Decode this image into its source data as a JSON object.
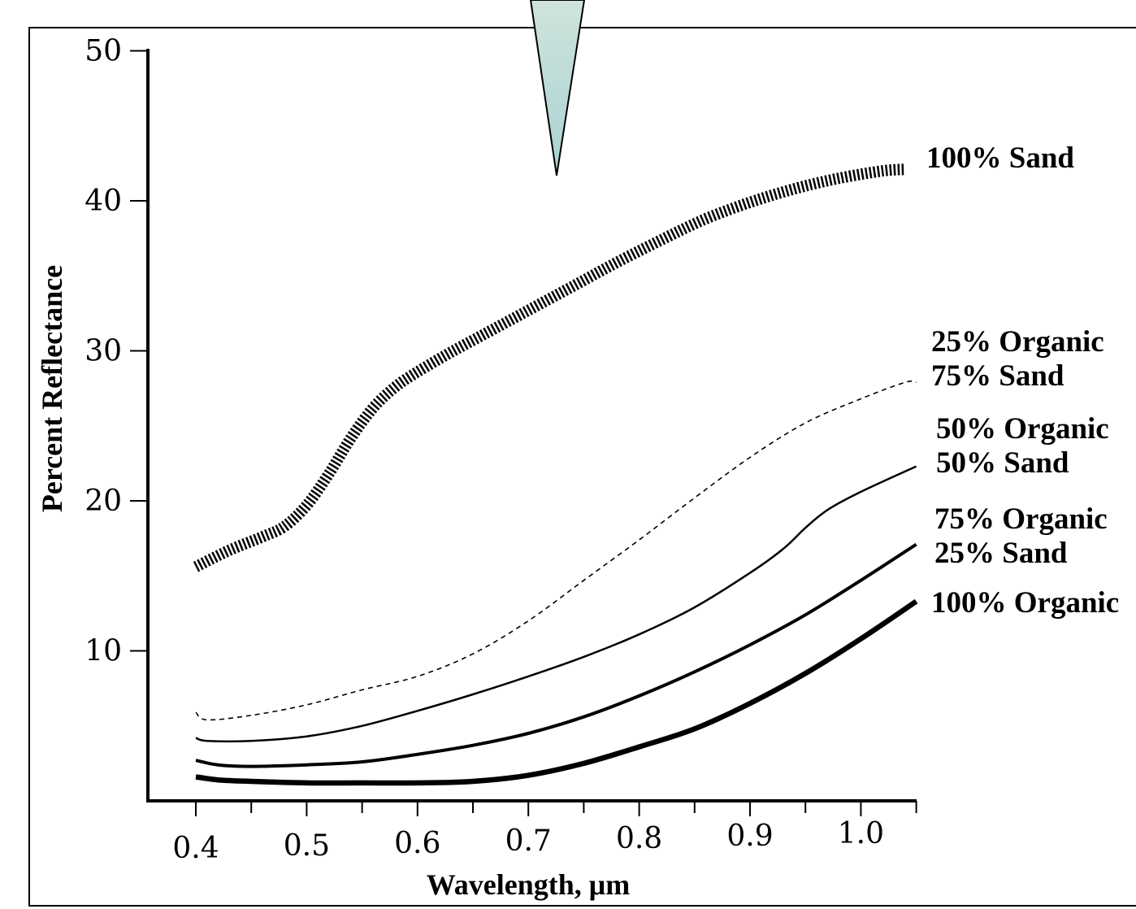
{
  "chart_data": {
    "type": "line",
    "title": "",
    "xlabel": "Wavelength, μm",
    "ylabel": "Percent Reflectance",
    "xlim": [
      0.35,
      1.05
    ],
    "ylim": [
      0,
      50
    ],
    "x_ticks": [
      "0.4",
      "0.5",
      "0.6",
      "0.7",
      "0.8",
      "0.9",
      "1.0"
    ],
    "x_tick_values": [
      0.4,
      0.5,
      0.6,
      0.7,
      0.8,
      0.9,
      1.0
    ],
    "y_ticks": [
      "10",
      "20",
      "30",
      "40",
      "50"
    ],
    "y_tick_values": [
      10,
      20,
      30,
      40,
      50
    ],
    "grid": false,
    "legend": "inline labels at right end of each curve",
    "series": [
      {
        "id": "sand100",
        "label_lines": [
          "100% Sand"
        ],
        "style": "hatched",
        "x": [
          0.4,
          0.43,
          0.46,
          0.48,
          0.5,
          0.52,
          0.54,
          0.56,
          0.58,
          0.6,
          0.63,
          0.66,
          0.7,
          0.74,
          0.78,
          0.82,
          0.86,
          0.9,
          0.94,
          0.98,
          1.02,
          1.04
        ],
        "y": [
          15.6,
          16.7,
          17.6,
          18.3,
          19.7,
          21.8,
          24.2,
          26.2,
          27.6,
          28.6,
          29.9,
          31.1,
          32.7,
          34.3,
          35.9,
          37.4,
          38.8,
          39.9,
          40.8,
          41.5,
          42.0,
          42.1
        ]
      },
      {
        "id": "org25",
        "label_lines": [
          "25% Organic",
          "75% Sand"
        ],
        "style": "dashed",
        "x": [
          0.4,
          0.41,
          0.45,
          0.5,
          0.55,
          0.6,
          0.65,
          0.7,
          0.75,
          0.8,
          0.85,
          0.9,
          0.95,
          1.0,
          1.04,
          1.05
        ],
        "y": [
          5.9,
          5.4,
          5.7,
          6.4,
          7.4,
          8.3,
          9.8,
          12.0,
          14.7,
          17.4,
          20.2,
          22.9,
          25.2,
          26.8,
          27.9,
          27.9
        ]
      },
      {
        "id": "org50",
        "label_lines": [
          "50% Organic",
          "50% Sand"
        ],
        "style": "solid-thin",
        "x": [
          0.4,
          0.41,
          0.45,
          0.5,
          0.55,
          0.6,
          0.65,
          0.7,
          0.75,
          0.8,
          0.85,
          0.9,
          0.93,
          0.95,
          0.97,
          1.0,
          1.05
        ],
        "y": [
          4.2,
          4.0,
          4.0,
          4.3,
          5.0,
          6.0,
          7.1,
          8.3,
          9.6,
          11.1,
          12.9,
          15.2,
          16.8,
          18.2,
          19.4,
          20.6,
          22.3
        ]
      },
      {
        "id": "org75",
        "label_lines": [
          "75% Organic",
          "25% Sand"
        ],
        "style": "solid-medium",
        "x": [
          0.4,
          0.42,
          0.45,
          0.5,
          0.55,
          0.6,
          0.65,
          0.7,
          0.75,
          0.8,
          0.85,
          0.9,
          0.95,
          1.0,
          1.05
        ],
        "y": [
          2.7,
          2.4,
          2.3,
          2.4,
          2.6,
          3.1,
          3.7,
          4.5,
          5.6,
          7.0,
          8.6,
          10.4,
          12.4,
          14.7,
          17.1
        ]
      },
      {
        "id": "org100",
        "label_lines": [
          "100% Organic"
        ],
        "style": "solid-thick",
        "x": [
          0.4,
          0.42,
          0.45,
          0.5,
          0.55,
          0.6,
          0.65,
          0.7,
          0.75,
          0.8,
          0.85,
          0.9,
          0.95,
          1.0,
          1.05
        ],
        "y": [
          1.6,
          1.4,
          1.3,
          1.2,
          1.2,
          1.2,
          1.3,
          1.7,
          2.5,
          3.6,
          4.8,
          6.5,
          8.5,
          10.8,
          13.3
        ]
      }
    ]
  }
}
